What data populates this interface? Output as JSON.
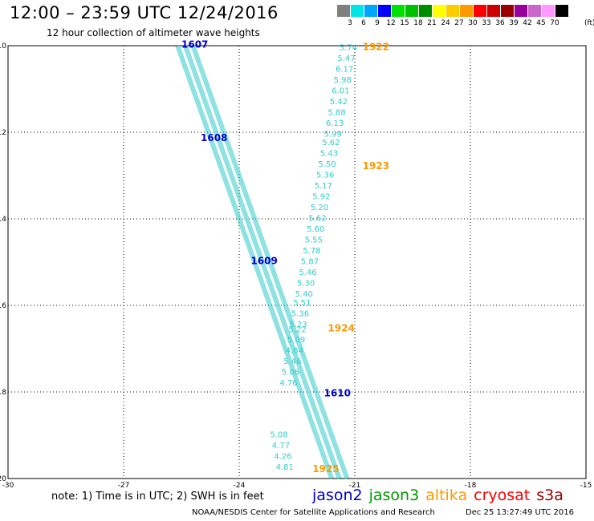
{
  "header": {
    "title": "12:00 – 23:59 UTC 12/24/2016",
    "subtitle": "12 hour collection of altimeter wave heights"
  },
  "legend": {
    "unit": "(ft)",
    "bins": [
      {
        "label": "3",
        "color": "#7f7f7f"
      },
      {
        "label": "6",
        "color": "#00e5e5"
      },
      {
        "label": "9",
        "color": "#00a5ff"
      },
      {
        "label": "12",
        "color": "#0000ff"
      },
      {
        "label": "15",
        "color": "#00e000"
      },
      {
        "label": "18",
        "color": "#00c000"
      },
      {
        "label": "21",
        "color": "#008c00"
      },
      {
        "label": "24",
        "color": "#ffff00"
      },
      {
        "label": "27",
        "color": "#ffcc00"
      },
      {
        "label": "30",
        "color": "#ff9900"
      },
      {
        "label": "33",
        "color": "#ff0000"
      },
      {
        "label": "36",
        "color": "#cc0000"
      },
      {
        "label": "39",
        "color": "#990000"
      },
      {
        "label": "42",
        "color": "#990099"
      },
      {
        "label": "45",
        "color": "#cc66cc"
      },
      {
        "label": "70",
        "color": "#ff99ff"
      },
      {
        "label": "",
        "color": "#000000"
      }
    ]
  },
  "map": {
    "lat_ticks": [
      "-10",
      "-12",
      "-14",
      "-16",
      "-18",
      "-20"
    ],
    "lon_ticks": [
      "-30",
      "-27",
      "-24",
      "-21",
      "-18",
      "-15"
    ],
    "wave_text_color": "#33cccc",
    "tracks": [
      {
        "satellite": "jason2",
        "pass_labels": [
          {
            "time": "1607",
            "lon": -25.5,
            "lat": -10.05
          },
          {
            "time": "1608",
            "lon": -25.0,
            "lat": -12.2
          },
          {
            "time": "1609",
            "lon": -23.7,
            "lat": -15.05
          },
          {
            "time": "1610",
            "lon": -21.8,
            "lat": -18.1
          }
        ],
        "label_color": "#0000cc"
      },
      {
        "satellite": "altika",
        "pass_labels": [
          {
            "time": "1922",
            "lon": -20.8,
            "lat": -10.1
          },
          {
            "time": "1923",
            "lon": -20.8,
            "lat": -12.85
          },
          {
            "time": "1924",
            "lon": -21.7,
            "lat": -16.6
          },
          {
            "time": "1925",
            "lon": -22.1,
            "lat": -19.85
          }
        ],
        "label_color": "#ff9900",
        "wave_heights": [
          {
            "v": "5.74",
            "lon": -21.4,
            "lat": -10.1
          },
          {
            "v": "5.47",
            "lon": -21.45,
            "lat": -10.35
          },
          {
            "v": "6.17",
            "lon": -21.5,
            "lat": -10.6
          },
          {
            "v": "5.98",
            "lon": -21.55,
            "lat": -10.85
          },
          {
            "v": "6.01",
            "lon": -21.6,
            "lat": -11.1
          },
          {
            "v": "5.42",
            "lon": -21.65,
            "lat": -11.35
          },
          {
            "v": "5.88",
            "lon": -21.7,
            "lat": -11.6
          },
          {
            "v": "6.13",
            "lon": -21.75,
            "lat": -11.85
          },
          {
            "v": "5.99",
            "lon": -21.8,
            "lat": -12.1
          },
          {
            "v": "5.62",
            "lon": -21.85,
            "lat": -12.3
          },
          {
            "v": "5.43",
            "lon": -21.9,
            "lat": -12.55
          },
          {
            "v": "5.50",
            "lon": -21.95,
            "lat": -12.8
          },
          {
            "v": "5.36",
            "lon": -22.0,
            "lat": -13.05
          },
          {
            "v": "5.17",
            "lon": -22.05,
            "lat": -13.3
          },
          {
            "v": "5.92",
            "lon": -22.1,
            "lat": -13.55
          },
          {
            "v": "5.20",
            "lon": -22.15,
            "lat": -13.8
          },
          {
            "v": "5.62",
            "lon": -22.2,
            "lat": -14.05
          },
          {
            "v": "5.60",
            "lon": -22.25,
            "lat": -14.3
          },
          {
            "v": "5.55",
            "lon": -22.3,
            "lat": -14.55
          },
          {
            "v": "5.78",
            "lon": -22.35,
            "lat": -14.8
          },
          {
            "v": "5.87",
            "lon": -22.4,
            "lat": -15.05
          },
          {
            "v": "5.46",
            "lon": -22.45,
            "lat": -15.3
          },
          {
            "v": "5.30",
            "lon": -22.5,
            "lat": -15.55
          },
          {
            "v": "5.40",
            "lon": -22.55,
            "lat": -15.8
          },
          {
            "v": "5.51",
            "lon": -22.6,
            "lat": -16.0
          },
          {
            "v": "5.36",
            "lon": -22.65,
            "lat": -16.25
          },
          {
            "v": "5.23",
            "lon": -22.7,
            "lat": -16.5
          },
          {
            "v": "5.22",
            "lon": -22.72,
            "lat": -16.62
          },
          {
            "v": "5.09",
            "lon": -22.75,
            "lat": -16.85
          },
          {
            "v": "4.84",
            "lon": -22.8,
            "lat": -17.1
          },
          {
            "v": "5.46",
            "lon": -22.85,
            "lat": -17.35
          },
          {
            "v": "5.06",
            "lon": -22.9,
            "lat": -17.6
          },
          {
            "v": "4.76",
            "lon": -22.95,
            "lat": -17.85
          },
          {
            "v": "4.81",
            "lon": -23.05,
            "lat": -19.8
          },
          {
            "v": "4.26",
            "lon": -23.1,
            "lat": -19.55
          },
          {
            "v": "4.77",
            "lon": -23.15,
            "lat": -19.3
          },
          {
            "v": "5.08",
            "lon": -23.2,
            "lat": -19.05
          }
        ]
      }
    ]
  },
  "footer": {
    "note": "note:  1) Time is in UTC;  2) SWH is in feet",
    "satellites": [
      {
        "name": "jason2",
        "color": "#0000cc"
      },
      {
        "name": "jason3",
        "color": "#009900"
      },
      {
        "name": "altika",
        "color": "#ff9900"
      },
      {
        "name": "cryosat",
        "color": "#ff0000"
      },
      {
        "name": "s3a",
        "color": "#990000"
      }
    ],
    "credit": "NOAA/NESDIS Center for Satellite Applications and Research",
    "timestamp": "Dec 25 13:27:49 UTC 2016"
  }
}
